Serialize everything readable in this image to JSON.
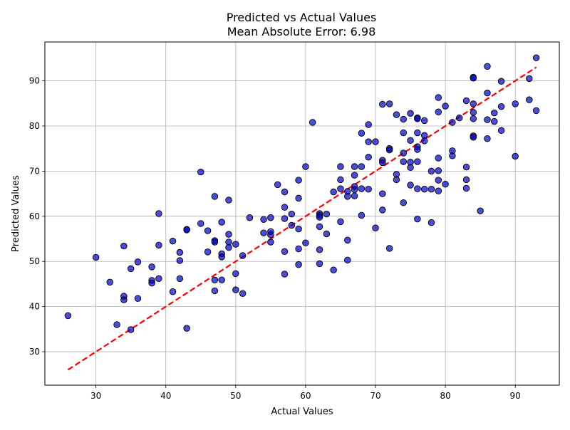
{
  "chart_data": {
    "type": "scatter",
    "title": "Predicted vs Actual Values",
    "subtitle": "Mean Absolute Error: 6.98",
    "xlabel": "Actual Values",
    "ylabel": "Predicted Values",
    "xlim": [
      22.7,
      96.3
    ],
    "ylim": [
      22.6,
      98.6
    ],
    "xticks": [
      30,
      40,
      50,
      60,
      70,
      80,
      90
    ],
    "yticks": [
      30,
      40,
      50,
      60,
      70,
      80,
      90
    ],
    "grid": true,
    "point_color": "#0000cc",
    "point_edge_color": "#000000",
    "reference_line": {
      "x": [
        26,
        93
      ],
      "y": [
        26,
        93
      ],
      "color": "#ff0000",
      "style": "dashed"
    },
    "points": [
      [
        26,
        38.0
      ],
      [
        30,
        50.9
      ],
      [
        32,
        45.4
      ],
      [
        33,
        36.0
      ],
      [
        34,
        53.4
      ],
      [
        34,
        42.3
      ],
      [
        34,
        41.5
      ],
      [
        35,
        48.4
      ],
      [
        35,
        34.9
      ],
      [
        36,
        49.9
      ],
      [
        36,
        41.8
      ],
      [
        38,
        48.8
      ],
      [
        38,
        45.8
      ],
      [
        38,
        45.2
      ],
      [
        39,
        60.6
      ],
      [
        39,
        53.6
      ],
      [
        39,
        46.2
      ],
      [
        41,
        54.5
      ],
      [
        41,
        43.3
      ],
      [
        42,
        52.0
      ],
      [
        42,
        50.2
      ],
      [
        42,
        46.2
      ],
      [
        43,
        57.1
      ],
      [
        43,
        57.0
      ],
      [
        43,
        35.2
      ],
      [
        45,
        69.8
      ],
      [
        45,
        58.4
      ],
      [
        46,
        56.8
      ],
      [
        46,
        52.1
      ],
      [
        47,
        64.4
      ],
      [
        47,
        54.6
      ],
      [
        47,
        54.3
      ],
      [
        47,
        45.9
      ],
      [
        47,
        43.5
      ],
      [
        48,
        58.7
      ],
      [
        48,
        51.7
      ],
      [
        48,
        51.0
      ],
      [
        48,
        45.9
      ],
      [
        49,
        63.6
      ],
      [
        49,
        56.0
      ],
      [
        49,
        54.3
      ],
      [
        49,
        53.1
      ],
      [
        50,
        53.8
      ],
      [
        50,
        47.3
      ],
      [
        50,
        43.7
      ],
      [
        51,
        51.3
      ],
      [
        51,
        42.9
      ],
      [
        52,
        59.7
      ],
      [
        54,
        59.3
      ],
      [
        54,
        56.3
      ],
      [
        55,
        59.7
      ],
      [
        55,
        56.6
      ],
      [
        55,
        55.9
      ],
      [
        55,
        54.3
      ],
      [
        56,
        67.0
      ],
      [
        57,
        65.4
      ],
      [
        57,
        62.0
      ],
      [
        57,
        59.5
      ],
      [
        57,
        52.2
      ],
      [
        57,
        47.2
      ],
      [
        58,
        60.5
      ],
      [
        58,
        58.0
      ],
      [
        59,
        68.0
      ],
      [
        59,
        64.0
      ],
      [
        59,
        57.2
      ],
      [
        59,
        52.8
      ],
      [
        59,
        49.3
      ],
      [
        60,
        71.0
      ],
      [
        60,
        54.1
      ],
      [
        61,
        80.8
      ],
      [
        62,
        60.6
      ],
      [
        62,
        60.2
      ],
      [
        62,
        59.8
      ],
      [
        62,
        57.7
      ],
      [
        62,
        52.6
      ],
      [
        62,
        49.5
      ],
      [
        63,
        60.5
      ],
      [
        63,
        56.1
      ],
      [
        64,
        65.4
      ],
      [
        64,
        48.1
      ],
      [
        65,
        71.0
      ],
      [
        65,
        68.1
      ],
      [
        65,
        66.1
      ],
      [
        65,
        58.8
      ],
      [
        66,
        65.5
      ],
      [
        66,
        64.4
      ],
      [
        66,
        54.7
      ],
      [
        66,
        50.3
      ],
      [
        67,
        71.0
      ],
      [
        67,
        69.1
      ],
      [
        67,
        66.6
      ],
      [
        67,
        65.9
      ],
      [
        67,
        64.5
      ],
      [
        68,
        78.4
      ],
      [
        68,
        71.0
      ],
      [
        68,
        66.1
      ],
      [
        68,
        60.2
      ],
      [
        69,
        80.3
      ],
      [
        69,
        76.5
      ],
      [
        69,
        73.1
      ],
      [
        69,
        66.0
      ],
      [
        70,
        76.5
      ],
      [
        70,
        57.4
      ],
      [
        71,
        84.8
      ],
      [
        71,
        72.4
      ],
      [
        71,
        71.9
      ],
      [
        71,
        65.0
      ],
      [
        71,
        61.4
      ],
      [
        72,
        84.9
      ],
      [
        72,
        75.0
      ],
      [
        72,
        74.7
      ],
      [
        72,
        52.9
      ],
      [
        73,
        82.5
      ],
      [
        73,
        69.3
      ],
      [
        73,
        68.1
      ],
      [
        74,
        81.5
      ],
      [
        74,
        78.5
      ],
      [
        74,
        74.0
      ],
      [
        74,
        72.1
      ],
      [
        74,
        63.0
      ],
      [
        75,
        82.8
      ],
      [
        75,
        76.8
      ],
      [
        75,
        72.0
      ],
      [
        75,
        70.8
      ],
      [
        75,
        66.9
      ],
      [
        76,
        81.8
      ],
      [
        76,
        81.6
      ],
      [
        76,
        78.5
      ],
      [
        76,
        75.4
      ],
      [
        76,
        74.8
      ],
      [
        76,
        72.1
      ],
      [
        76,
        66.1
      ],
      [
        76,
        59.4
      ],
      [
        77,
        81.2
      ],
      [
        77,
        77.9
      ],
      [
        77,
        76.7
      ],
      [
        77,
        66.0
      ],
      [
        78,
        70.0
      ],
      [
        78,
        66.0
      ],
      [
        78,
        58.6
      ],
      [
        79,
        86.3
      ],
      [
        79,
        83.1
      ],
      [
        79,
        72.9
      ],
      [
        79,
        70.1
      ],
      [
        79,
        68.0
      ],
      [
        79,
        65.6
      ],
      [
        80,
        84.4
      ],
      [
        80,
        67.1
      ],
      [
        81,
        80.8
      ],
      [
        81,
        74.5
      ],
      [
        81,
        73.4
      ],
      [
        82,
        81.8
      ],
      [
        83,
        85.6
      ],
      [
        83,
        70.9
      ],
      [
        83,
        68.1
      ],
      [
        83,
        66.2
      ],
      [
        84,
        90.8
      ],
      [
        84,
        90.6
      ],
      [
        84,
        84.9
      ],
      [
        84,
        83.0
      ],
      [
        84,
        81.6
      ],
      [
        84,
        77.8
      ],
      [
        84,
        77.5
      ],
      [
        85,
        61.2
      ],
      [
        86,
        93.2
      ],
      [
        86,
        87.3
      ],
      [
        86,
        81.4
      ],
      [
        86,
        77.2
      ],
      [
        87,
        82.9
      ],
      [
        87,
        81.0
      ],
      [
        88,
        89.9
      ],
      [
        88,
        84.3
      ],
      [
        88,
        79.0
      ],
      [
        90,
        84.9
      ],
      [
        90,
        73.3
      ],
      [
        92,
        90.5
      ],
      [
        92,
        85.8
      ],
      [
        93,
        95.1
      ],
      [
        93,
        83.4
      ]
    ]
  }
}
